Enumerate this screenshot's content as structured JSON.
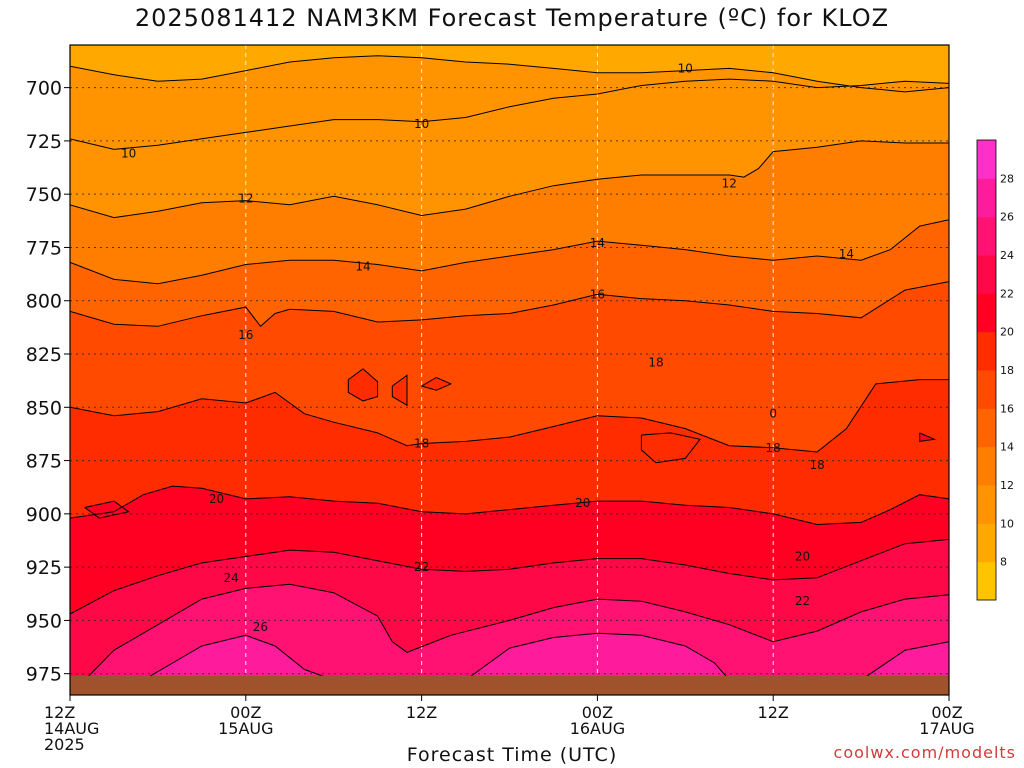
{
  "chart_data": {
    "type": "heatmap",
    "title": "2025081412 NAM3KM Forecast Temperature (ºC) for KLOZ",
    "xlabel": "Forecast Time (UTC)",
    "ylabel": "",
    "credit": "coolwx.com/modelts",
    "x_range_hours": [
      0,
      60
    ],
    "y_range_hPa": [
      680,
      985
    ],
    "y_scale": "linear-inverted",
    "grid": true,
    "x_ticks": [
      {
        "hour": 0,
        "line1": "12Z",
        "line2": "14AUG",
        "line3": "2025"
      },
      {
        "hour": 12,
        "line1": "00Z",
        "line2": "15AUG",
        "line3": ""
      },
      {
        "hour": 24,
        "line1": "12Z",
        "line2": "",
        "line3": ""
      },
      {
        "hour": 36,
        "line1": "00Z",
        "line2": "16AUG",
        "line3": ""
      },
      {
        "hour": 48,
        "line1": "12Z",
        "line2": "",
        "line3": ""
      },
      {
        "hour": 60,
        "line1": "00Z",
        "line2": "17AUG",
        "line3": ""
      }
    ],
    "y_ticks": [
      "700",
      "725",
      "750",
      "775",
      "800",
      "825",
      "850",
      "875",
      "900",
      "925",
      "950",
      "975"
    ],
    "colorbar": {
      "levels": [
        6,
        8,
        10,
        12,
        14,
        16,
        18,
        20,
        22,
        24,
        26,
        28,
        30
      ],
      "tick_labels": [
        "8",
        "10",
        "12",
        "14",
        "16",
        "18",
        "20",
        "22",
        "24",
        "26",
        "28"
      ],
      "colors": [
        "#ffc400",
        "#ffa800",
        "#ff9400",
        "#ff7e00",
        "#ff6400",
        "#ff4a00",
        "#ff2c00",
        "#ff0022",
        "#ff0848",
        "#ff1272",
        "#ff1c9c",
        "#ff30c8"
      ]
    },
    "ground_color": "#a0522d",
    "ground_level_hPa": 976,
    "contours": [
      {
        "temp": 10,
        "label": "10",
        "points": [
          [
            0,
            690
          ],
          [
            3,
            694
          ],
          [
            6,
            697
          ],
          [
            9,
            696
          ],
          [
            12,
            692
          ],
          [
            15,
            688
          ],
          [
            18,
            686
          ],
          [
            21,
            685
          ],
          [
            24,
            686
          ],
          [
            27,
            688
          ],
          [
            30,
            689
          ],
          [
            33,
            691
          ],
          [
            36,
            693
          ],
          [
            39,
            693
          ],
          [
            42,
            692
          ],
          [
            45,
            691
          ],
          [
            48,
            693
          ],
          [
            51,
            697
          ],
          [
            54,
            700
          ],
          [
            57,
            702
          ],
          [
            60,
            700
          ]
        ]
      },
      {
        "temp": 10,
        "label": "10",
        "points": [
          [
            0,
            724
          ],
          [
            3,
            729
          ],
          [
            6,
            727
          ],
          [
            9,
            724
          ],
          [
            12,
            721
          ],
          [
            15,
            718
          ],
          [
            18,
            715
          ],
          [
            21,
            715
          ],
          [
            24,
            716
          ],
          [
            27,
            714
          ],
          [
            30,
            709
          ],
          [
            33,
            705
          ],
          [
            36,
            703
          ],
          [
            39,
            699
          ],
          [
            42,
            697
          ],
          [
            45,
            696
          ],
          [
            48,
            697
          ],
          [
            51,
            700
          ],
          [
            54,
            699
          ],
          [
            57,
            697
          ],
          [
            60,
            698
          ]
        ]
      },
      {
        "temp": 12,
        "label": "12",
        "points": [
          [
            0,
            755
          ],
          [
            3,
            761
          ],
          [
            6,
            758
          ],
          [
            9,
            754
          ],
          [
            12,
            753
          ],
          [
            15,
            755
          ],
          [
            18,
            751
          ],
          [
            21,
            755
          ],
          [
            24,
            760
          ],
          [
            27,
            757
          ],
          [
            30,
            751
          ],
          [
            33,
            746
          ],
          [
            36,
            743
          ],
          [
            39,
            741
          ],
          [
            42,
            741
          ],
          [
            45,
            741
          ],
          [
            46,
            742
          ],
          [
            47,
            738
          ],
          [
            48,
            730
          ],
          [
            51,
            728
          ],
          [
            54,
            725
          ],
          [
            57,
            726
          ],
          [
            60,
            726
          ]
        ]
      },
      {
        "temp": 14,
        "label": "14",
        "points": [
          [
            0,
            782
          ],
          [
            3,
            790
          ],
          [
            6,
            792
          ],
          [
            9,
            788
          ],
          [
            12,
            783
          ],
          [
            15,
            781
          ],
          [
            18,
            781
          ],
          [
            21,
            783
          ],
          [
            24,
            786
          ],
          [
            27,
            782
          ],
          [
            30,
            779
          ],
          [
            33,
            776
          ],
          [
            36,
            772
          ],
          [
            39,
            774
          ],
          [
            42,
            776
          ],
          [
            45,
            779
          ],
          [
            48,
            781
          ],
          [
            51,
            779
          ],
          [
            54,
            781
          ],
          [
            56,
            776
          ],
          [
            58,
            765
          ],
          [
            60,
            762
          ]
        ]
      },
      {
        "temp": 16,
        "label": "16",
        "points": [
          [
            0,
            805
          ],
          [
            3,
            811
          ],
          [
            6,
            812
          ],
          [
            9,
            807
          ],
          [
            12,
            803
          ],
          [
            13,
            812
          ],
          [
            14,
            806
          ],
          [
            15,
            804
          ],
          [
            18,
            805
          ],
          [
            21,
            810
          ],
          [
            24,
            809
          ],
          [
            27,
            807
          ],
          [
            30,
            806
          ],
          [
            33,
            802
          ],
          [
            36,
            797
          ],
          [
            39,
            799
          ],
          [
            42,
            800
          ],
          [
            45,
            802
          ],
          [
            48,
            805
          ],
          [
            51,
            806
          ],
          [
            54,
            808
          ],
          [
            57,
            795
          ],
          [
            60,
            791
          ]
        ]
      },
      {
        "temp": 18,
        "label": "18",
        "points": [
          [
            0,
            850
          ],
          [
            3,
            854
          ],
          [
            6,
            852
          ],
          [
            9,
            846
          ],
          [
            12,
            848
          ],
          [
            14,
            843
          ],
          [
            16,
            853
          ],
          [
            18,
            857
          ],
          [
            21,
            862
          ],
          [
            23,
            868
          ],
          [
            24,
            867
          ],
          [
            27,
            866
          ],
          [
            30,
            864
          ],
          [
            33,
            859
          ],
          [
            36,
            854
          ],
          [
            39,
            855
          ],
          [
            42,
            860
          ],
          [
            45,
            868
          ],
          [
            48,
            869
          ],
          [
            51,
            871
          ],
          [
            53,
            860
          ],
          [
            55,
            839
          ],
          [
            58,
            837
          ],
          [
            60,
            837
          ]
        ]
      },
      {
        "temp": 20,
        "label": "20",
        "points": [
          [
            0,
            902
          ],
          [
            3,
            899
          ],
          [
            5,
            891
          ],
          [
            7,
            887
          ],
          [
            9,
            888
          ],
          [
            12,
            893
          ],
          [
            15,
            892
          ],
          [
            18,
            894
          ],
          [
            21,
            895
          ],
          [
            24,
            899
          ],
          [
            27,
            900
          ],
          [
            30,
            898
          ],
          [
            33,
            896
          ],
          [
            36,
            894
          ],
          [
            39,
            894
          ],
          [
            42,
            896
          ],
          [
            45,
            897
          ],
          [
            48,
            900
          ],
          [
            51,
            905
          ],
          [
            54,
            904
          ],
          [
            56,
            898
          ],
          [
            58,
            891
          ],
          [
            60,
            893
          ]
        ]
      },
      {
        "temp": 22,
        "label": "22",
        "points": [
          [
            0,
            947
          ],
          [
            3,
            936
          ],
          [
            6,
            929
          ],
          [
            9,
            923
          ],
          [
            12,
            920
          ],
          [
            15,
            917
          ],
          [
            18,
            918
          ],
          [
            21,
            922
          ],
          [
            24,
            926
          ],
          [
            27,
            927
          ],
          [
            30,
            926
          ],
          [
            33,
            923
          ],
          [
            36,
            921
          ],
          [
            39,
            921
          ],
          [
            42,
            924
          ],
          [
            45,
            928
          ],
          [
            48,
            931
          ],
          [
            51,
            930
          ],
          [
            54,
            922
          ],
          [
            57,
            914
          ],
          [
            60,
            912
          ]
        ]
      },
      {
        "temp": 24,
        "label": "24",
        "points": [
          [
            1,
            978
          ],
          [
            3,
            964
          ],
          [
            6,
            952
          ],
          [
            9,
            940
          ],
          [
            12,
            935
          ],
          [
            15,
            933
          ],
          [
            18,
            937
          ],
          [
            21,
            948
          ],
          [
            22,
            960
          ],
          [
            23,
            965
          ],
          [
            26,
            957
          ],
          [
            30,
            950
          ],
          [
            33,
            944
          ],
          [
            36,
            940
          ],
          [
            39,
            941
          ],
          [
            42,
            946
          ],
          [
            45,
            952
          ],
          [
            48,
            960
          ],
          [
            51,
            955
          ],
          [
            54,
            946
          ],
          [
            57,
            940
          ],
          [
            60,
            938
          ]
        ]
      },
      {
        "temp": 26,
        "label": "26",
        "points": [
          [
            5,
            978
          ],
          [
            7,
            970
          ],
          [
            9,
            962
          ],
          [
            12,
            957
          ],
          [
            14,
            962
          ],
          [
            16,
            973
          ],
          [
            18,
            978
          ]
        ]
      },
      {
        "temp": 26,
        "label": "",
        "points": [
          [
            27,
            978
          ],
          [
            30,
            963
          ],
          [
            33,
            958
          ],
          [
            36,
            956
          ],
          [
            39,
            957
          ],
          [
            42,
            962
          ],
          [
            44,
            970
          ],
          [
            45,
            978
          ]
        ]
      },
      {
        "temp": 26,
        "label": "",
        "points": [
          [
            54,
            978
          ],
          [
            57,
            964
          ],
          [
            60,
            960
          ]
        ]
      },
      {
        "temp": 18,
        "label": "",
        "points": [
          [
            19,
            837
          ],
          [
            20,
            832
          ],
          [
            21,
            838
          ],
          [
            21,
            845
          ],
          [
            20,
            847
          ],
          [
            19,
            843
          ],
          [
            19,
            837
          ]
        ]
      },
      {
        "temp": 18,
        "label": "",
        "points": [
          [
            22,
            840
          ],
          [
            23,
            835
          ],
          [
            23,
            849
          ],
          [
            22,
            845
          ],
          [
            22,
            840
          ]
        ]
      },
      {
        "temp": 18,
        "label": "",
        "points": [
          [
            24,
            840
          ],
          [
            25,
            836
          ],
          [
            26,
            839
          ],
          [
            25,
            842
          ],
          [
            24,
            840
          ]
        ]
      },
      {
        "temp": 18,
        "label": "",
        "points": [
          [
            39,
            863
          ],
          [
            41,
            862
          ],
          [
            43,
            865
          ],
          [
            42,
            874
          ],
          [
            40,
            876
          ],
          [
            39,
            870
          ],
          [
            39,
            863
          ]
        ]
      },
      {
        "temp": 20,
        "label": "",
        "points": [
          [
            58,
            862
          ],
          [
            59,
            865
          ],
          [
            58,
            866
          ],
          [
            58,
            862
          ]
        ]
      },
      {
        "temp": 20,
        "label": "",
        "points": [
          [
            1,
            897
          ],
          [
            3,
            894
          ],
          [
            4,
            899
          ],
          [
            2,
            902
          ],
          [
            1,
            897
          ]
        ]
      }
    ],
    "contour_labels": [
      {
        "text": "10",
        "hour": 42,
        "hPa": 691
      },
      {
        "text": "10",
        "hour": 24,
        "hPa": 717
      },
      {
        "text": "10",
        "hour": 4,
        "hPa": 731
      },
      {
        "text": "12",
        "hour": 12,
        "hPa": 752
      },
      {
        "text": "12",
        "hour": 45,
        "hPa": 745
      },
      {
        "text": "14",
        "hour": 36,
        "hPa": 773
      },
      {
        "text": "14",
        "hour": 20,
        "hPa": 784
      },
      {
        "text": "14",
        "hour": 53,
        "hPa": 778
      },
      {
        "text": "16",
        "hour": 36,
        "hPa": 797
      },
      {
        "text": "16",
        "hour": 12,
        "hPa": 816
      },
      {
        "text": "18",
        "hour": 40,
        "hPa": 829
      },
      {
        "text": "18",
        "hour": 24,
        "hPa": 867
      },
      {
        "text": "18",
        "hour": 51,
        "hPa": 877
      },
      {
        "text": "18",
        "hour": 48,
        "hPa": 869
      },
      {
        "text": "20",
        "hour": 10,
        "hPa": 893
      },
      {
        "text": "20",
        "hour": 35,
        "hPa": 895
      },
      {
        "text": "20",
        "hour": 50,
        "hPa": 920
      },
      {
        "text": "22",
        "hour": 24,
        "hPa": 925
      },
      {
        "text": "22",
        "hour": 50,
        "hPa": 941
      },
      {
        "text": "24",
        "hour": 11,
        "hPa": 930
      },
      {
        "text": "26",
        "hour": 13,
        "hPa": 953
      },
      {
        "text": "0",
        "hour": 48,
        "hPa": 853
      }
    ]
  }
}
